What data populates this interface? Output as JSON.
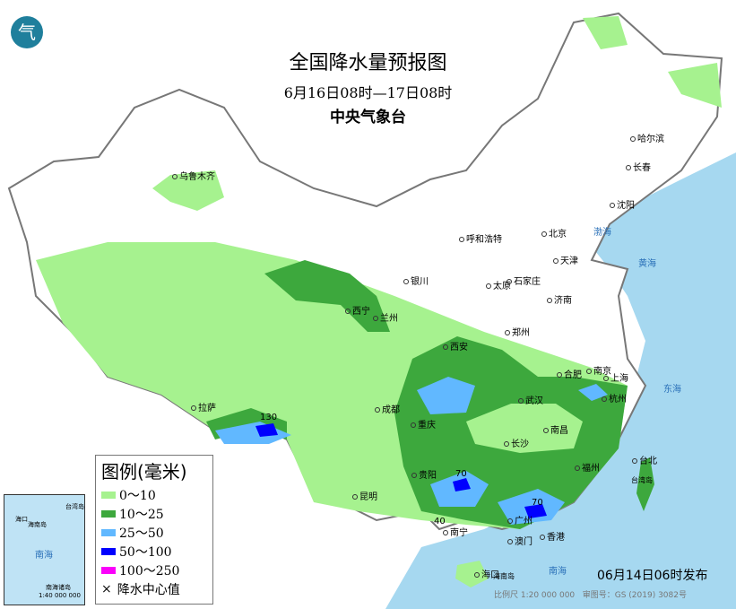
{
  "header": {
    "title": "全国降水量预报图",
    "period": "6月16日08时—17日08时",
    "agency": "中央气象台"
  },
  "logo": {
    "text": "气"
  },
  "colors": {
    "sea": "#a6d8f0",
    "land": "#ffffff",
    "r0_10": "#a6f28f",
    "r10_25": "#3da83d",
    "r25_50": "#61b8ff",
    "r50_100": "#0000fe",
    "r100_250": "#fa00fa"
  },
  "cities": [
    {
      "name": "乌鲁木齐"
    },
    {
      "name": "哈尔滨"
    },
    {
      "name": "长春"
    },
    {
      "name": "沈阳"
    },
    {
      "name": "呼和浩特"
    },
    {
      "name": "北京"
    },
    {
      "name": "天津"
    },
    {
      "name": "石家庄"
    },
    {
      "name": "太原"
    },
    {
      "name": "银川"
    },
    {
      "name": "济南"
    },
    {
      "name": "西宁"
    },
    {
      "name": "兰州"
    },
    {
      "name": "郑州"
    },
    {
      "name": "西安"
    },
    {
      "name": "合肥"
    },
    {
      "name": "南京"
    },
    {
      "name": "上海"
    },
    {
      "name": "杭州"
    },
    {
      "name": "武汉"
    },
    {
      "name": "成都"
    },
    {
      "name": "重庆"
    },
    {
      "name": "拉萨"
    },
    {
      "name": "长沙"
    },
    {
      "name": "南昌"
    },
    {
      "name": "福州"
    },
    {
      "name": "台北"
    },
    {
      "name": "贵阳"
    },
    {
      "name": "昆明"
    },
    {
      "name": "南宁"
    },
    {
      "name": "广州"
    },
    {
      "name": "香港"
    },
    {
      "name": "澳门"
    },
    {
      "name": "海口"
    }
  ],
  "rain_centers": [
    "130",
    "70",
    "70",
    "40"
  ],
  "seas": {
    "bohai": "渤海",
    "huanghai": "黄海",
    "donghai": "东海",
    "nanhai": "南海",
    "taiwan": "台湾岛",
    "hainan": "海南岛"
  },
  "legend": {
    "title": "图例(毫米)",
    "items": [
      {
        "label": "0～10",
        "color": "#a6f28f"
      },
      {
        "label": "10～25",
        "color": "#3da83d"
      },
      {
        "label": "25～50",
        "color": "#61b8ff"
      },
      {
        "label": "50～100",
        "color": "#0000fe"
      },
      {
        "label": "100～250",
        "color": "#fa00fa"
      }
    ],
    "center_label": "降水中心值"
  },
  "inset": {
    "sea": "南海",
    "islands": "南海诸岛",
    "scale": "1:40 000 000",
    "hainan": "海南岛",
    "haikou": "海口",
    "taiwan": "台湾岛"
  },
  "footer": {
    "published": "06月14日06时发布",
    "scale": "比例尺 1:20 000 000",
    "approval": "审图号：GS (2019) 3082号"
  }
}
